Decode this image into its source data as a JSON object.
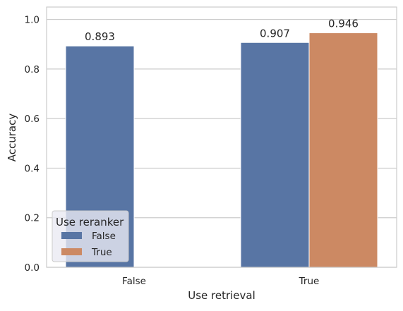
{
  "chart_data": {
    "type": "bar",
    "title": "",
    "xlabel": "Use retrieval",
    "ylabel": "Accuracy",
    "categories": [
      "False",
      "True"
    ],
    "ylim": [
      0,
      1.05
    ],
    "yticks": [
      "0.0",
      "0.2",
      "0.4",
      "0.6",
      "0.8",
      "1.0"
    ],
    "ytick_values": [
      0,
      0.2,
      0.4,
      0.6,
      0.8,
      1.0
    ],
    "grid": "horizontal",
    "legend": {
      "title": "Use reranker",
      "placement": "bottom-left"
    },
    "series": [
      {
        "name": "False",
        "color": "#5875a4",
        "values": [
          0.893,
          0.907
        ],
        "labels": [
          "0.893",
          "0.907"
        ]
      },
      {
        "name": "True",
        "color": "#cc8963",
        "values": [
          null,
          0.946
        ],
        "labels": [
          "",
          "0.946"
        ]
      }
    ]
  }
}
